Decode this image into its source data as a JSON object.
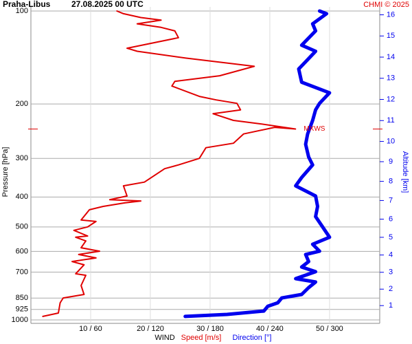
{
  "chart_data": {
    "type": "line",
    "title": "Praha-Libus",
    "subtitle": "27.08.2025 00 UTC",
    "credit": "CHMI © 2025",
    "ylabel": "Pressure [hPa]",
    "y2label": "Altitude [km]",
    "xlabel": "WIND",
    "ylim": [
      1000,
      100
    ],
    "ylog": true,
    "yticks": [
      100,
      200,
      300,
      400,
      500,
      600,
      700,
      850,
      925,
      1000
    ],
    "y2ticks": [
      1,
      2,
      3,
      4,
      5,
      6,
      7,
      8,
      9,
      10,
      11,
      12,
      13,
      14,
      15,
      16
    ],
    "y2color": "#0000ee",
    "xlim": [
      0,
      58.4
    ],
    "x2lim": [
      0,
      350.4
    ],
    "xticks": [
      {
        "value": 10,
        "label": "10 / 60"
      },
      {
        "value": 20,
        "label": "20 / 120"
      },
      {
        "value": 30,
        "label": "30 / 180"
      },
      {
        "value": 40,
        "label": "40 / 240"
      },
      {
        "value": 50,
        "label": "50 / 300"
      }
    ],
    "grid": true,
    "series": [
      {
        "name": "Speed [m/s]",
        "color": "#e00000",
        "width": 2,
        "pressure": [
          974,
          950,
          880,
          849,
          827,
          774,
          717,
          709,
          663,
          647,
          630,
          614,
          599,
          584,
          555,
          540,
          535,
          513,
          500,
          480,
          475,
          440,
          429,
          418,
          412,
          408,
          397,
          368,
          358,
          324,
          315,
          300,
          277,
          268,
          250,
          238,
          241,
          232,
          226,
          215,
          209,
          199,
          194,
          189,
          175,
          169,
          162,
          151,
          142,
          135,
          132,
          122,
          116,
          113,
          110,
          107,
          105,
          102,
          100
        ],
        "values": [
          2.0,
          4.6,
          4.9,
          5.4,
          8.9,
          8.4,
          9.2,
          7.5,
          8.9,
          6.9,
          10.9,
          8.0,
          11.5,
          8.4,
          9.2,
          7.5,
          9.5,
          7.2,
          9.5,
          10.9,
          8.4,
          9.8,
          12.1,
          15.7,
          18.4,
          13.2,
          16.1,
          15.5,
          19.0,
          22.4,
          24.7,
          28.2,
          29.3,
          33.9,
          35.6,
          40.8,
          44.3,
          38.5,
          33.9,
          30.5,
          35.1,
          34.5,
          31.0,
          28.2,
          23.6,
          24.1,
          31.6,
          37.4,
          25.9,
          17.8,
          16.1,
          24.7,
          24.1,
          21.8,
          17.8,
          21.8,
          18.4,
          15.5,
          14.4
        ]
      },
      {
        "name": "Direction [°]",
        "color": "#0000ee",
        "width": 5,
        "axis": "x2",
        "pressure": [
          974,
          960,
          936,
          903,
          880,
          849,
          827,
          786,
          754,
          735,
          698,
          674,
          647,
          614,
          599,
          569,
          540,
          500,
          463,
          429,
          397,
          368,
          346,
          315,
          297,
          270,
          250,
          226,
          209,
          199,
          184,
          170,
          154,
          146,
          135,
          129,
          116,
          110,
          102,
          100
        ],
        "values": [
          155,
          197,
          234,
          238,
          248,
          252,
          272,
          279,
          286,
          266,
          286,
          272,
          279,
          276,
          290,
          283,
          300,
          293,
          286,
          288,
          286,
          266,
          272,
          283,
          279,
          276,
          278,
          283,
          286,
          290,
          300,
          272,
          269,
          276,
          286,
          272,
          286,
          283,
          297,
          290
        ]
      }
    ],
    "max_wind": {
      "label": "MXWS",
      "pressure": 241,
      "speed": 44.3
    }
  }
}
